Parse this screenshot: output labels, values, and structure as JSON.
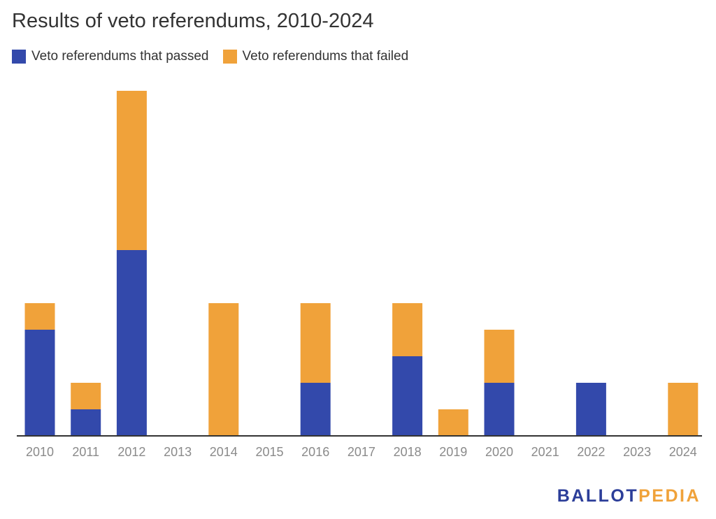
{
  "colors": {
    "passed": "#3349ab",
    "failed": "#f0a23a",
    "axis": "#333333",
    "tick_text": "#8a8a8a",
    "logo_ballot": "#2c3e99",
    "logo_pedia": "#f0a23a"
  },
  "logo": {
    "part1": "BALLOT",
    "part2": "PEDIA"
  },
  "chart_data": {
    "type": "bar",
    "stacked": true,
    "title": "Results of veto referendums, 2010-2024",
    "xlabel": "",
    "ylabel": "",
    "categories": [
      "2010",
      "2011",
      "2012",
      "2013",
      "2014",
      "2015",
      "2016",
      "2017",
      "2018",
      "2019",
      "2020",
      "2021",
      "2022",
      "2023",
      "2024"
    ],
    "series": [
      {
        "name": "Veto referendums that passed",
        "values": [
          4,
          1,
          7,
          0,
          0,
          0,
          2,
          0,
          3,
          0,
          2,
          0,
          2,
          0,
          0
        ]
      },
      {
        "name": "Veto referendums that failed",
        "values": [
          1,
          1,
          6,
          0,
          5,
          0,
          3,
          0,
          2,
          1,
          2,
          0,
          0,
          0,
          2
        ]
      }
    ],
    "ylim": [
      0,
      13
    ],
    "grid": false,
    "y_axis_labels": false,
    "legend_position": "top-left"
  }
}
